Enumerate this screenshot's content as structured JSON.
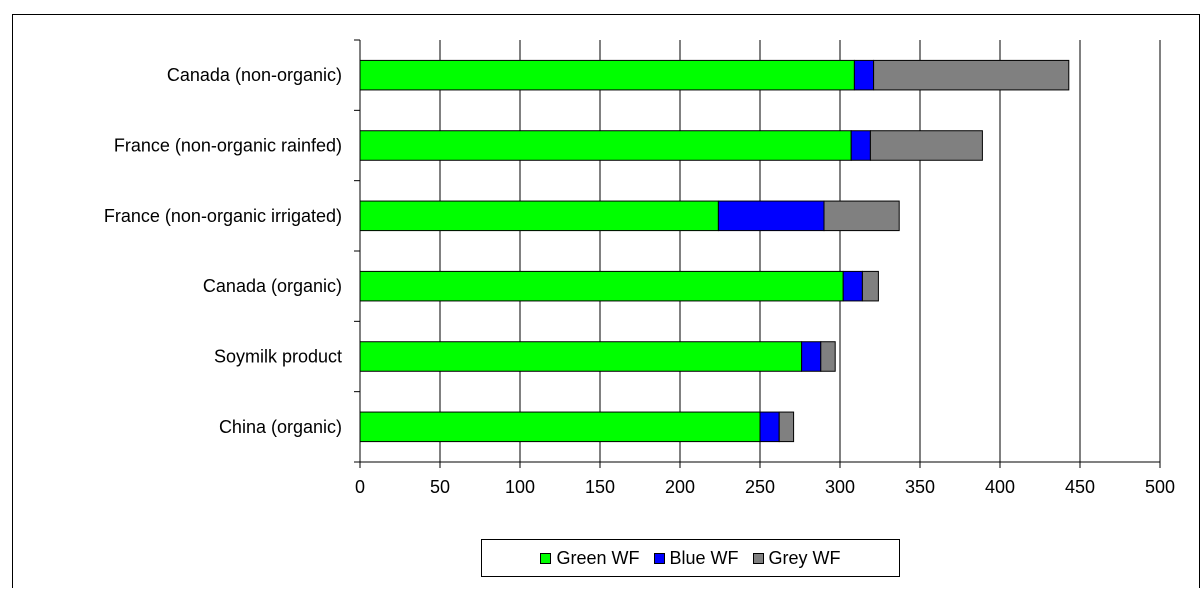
{
  "chart_data": {
    "type": "bar",
    "orientation": "horizontal",
    "stacked": true,
    "title": "",
    "xlabel": "",
    "ylabel": "",
    "xlim": [
      0,
      500
    ],
    "xticks": [
      0,
      50,
      100,
      150,
      200,
      250,
      300,
      350,
      400,
      450,
      500
    ],
    "grid": "vertical",
    "legend_position": "bottom",
    "categories": [
      "Canada  (non-organic)",
      "France (non-organic rainfed)",
      "France (non-organic irrigated)",
      "Canada (organic)",
      "Soymilk product",
      "China (organic)"
    ],
    "series": [
      {
        "name": "Green WF",
        "color": "#00FF00",
        "values": [
          309,
          307,
          224,
          302,
          276,
          250
        ]
      },
      {
        "name": "Blue WF",
        "color": "#0000FF",
        "values": [
          12,
          12,
          66,
          12,
          12,
          12
        ]
      },
      {
        "name": "Grey WF",
        "color": "#808080",
        "values": [
          122,
          70,
          47,
          10,
          9,
          9
        ]
      }
    ]
  }
}
